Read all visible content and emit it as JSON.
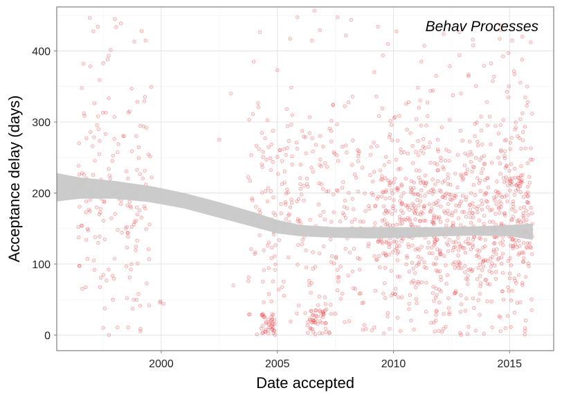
{
  "chart_data": {
    "type": "scatter",
    "title": "",
    "annotation": "Behav Processes",
    "xlabel": "Date accepted",
    "ylabel": "Acceptance delay (days)",
    "xlim": [
      1995.5,
      2016.9
    ],
    "ylim": [
      -22,
      462
    ],
    "x_ticks": [
      2000,
      2005,
      2010,
      2015
    ],
    "x_tick_labels": [
      "2000",
      "2005",
      "2010",
      "2015"
    ],
    "y_ticks": [
      0,
      100,
      200,
      300,
      400
    ],
    "y_tick_labels": [
      "0",
      "100",
      "200",
      "300",
      "400"
    ],
    "grid": true,
    "point_color": "#e8474b",
    "smooth_band_color": "#c8c8c8",
    "smooth_band": {
      "x": [
        1995.5,
        1996.5,
        1998.0,
        1999.5,
        2001.0,
        2002.5,
        2004.0,
        2005.0,
        2006.0,
        2007.5,
        2009.0,
        2010.5,
        2012.0,
        2013.5,
        2015.0,
        2016.0
      ],
      "upper": [
        228,
        222,
        217,
        210,
        200,
        187,
        173,
        162,
        155,
        152,
        152,
        152,
        152,
        153,
        155,
        157
      ],
      "lower": [
        188,
        192,
        192,
        187,
        178,
        165,
        152,
        143,
        139,
        137,
        136,
        137,
        139,
        140,
        139,
        134
      ]
    }
  }
}
